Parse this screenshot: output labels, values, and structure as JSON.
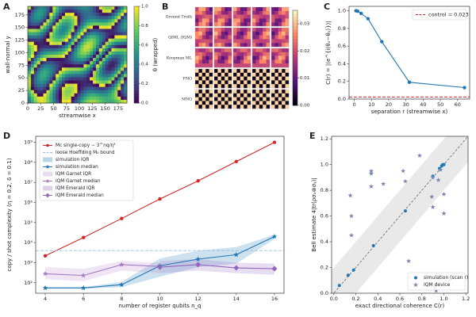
{
  "chart_data": [
    {
      "type": "heatmap",
      "panel": "A",
      "xlabel": "streamwise x",
      "ylabel": "wall-normal y",
      "xlim": [
        0,
        192
      ],
      "ylim": [
        0,
        192
      ],
      "xticks": [
        0,
        25,
        50,
        75,
        100,
        125,
        150,
        175
      ],
      "yticks": [
        0,
        25,
        50,
        75,
        100,
        125,
        150,
        175
      ],
      "colormap": "viridis",
      "clabel": "θ (wrapped)",
      "clim": [
        0,
        1
      ],
      "cticks": [
        {
          "value": 0,
          "label": "0.0"
        },
        0.2,
        0.4,
        0.6,
        0.8,
        {
          "value": 1,
          "label": "1.0"
        }
      ]
    },
    {
      "type": "image-grid",
      "panel": "B",
      "rows": [
        "Ground Truth",
        "QIML (IQM)",
        "Koopman ML",
        "FNO",
        "MNO"
      ],
      "colormap": "magma",
      "clim": [
        0,
        0.035
      ],
      "cticks": [
        {
          "value": 0,
          "label": "0.00"
        },
        {
          "value": 0.01,
          "label": "0.01"
        },
        {
          "value": 0.02,
          "label": "0.02"
        },
        {
          "value": 0.03,
          "label": "0.03"
        }
      ]
    },
    {
      "type": "line",
      "panel": "C",
      "xlabel": "separation r (streamwise x)",
      "ylabel": "C(r) = |⟨e^{i(θₓ−θᵧ)}⟩|",
      "x": [
        1,
        2,
        4,
        8,
        16,
        32,
        64
      ],
      "values": [
        1.0,
        0.995,
        0.97,
        0.91,
        0.65,
        0.19,
        0.13
      ],
      "color": "#1f77b4",
      "hline": {
        "name": "control = 0.023",
        "value": 0.023,
        "color": "#c62828"
      },
      "xlim": [
        -3,
        67
      ],
      "ylim": [
        0,
        1.05
      ],
      "xticks": [
        0,
        10,
        20,
        30,
        40,
        50,
        60
      ],
      "yticks": [
        {
          "value": 0,
          "label": "0.0"
        },
        0.2,
        0.4,
        0.6,
        0.8,
        {
          "value": 1,
          "label": "1.0"
        }
      ],
      "legend": "upper-right",
      "grid": false
    },
    {
      "type": "line",
      "panel": "D",
      "xlabel": "number of register qubits n_q",
      "ylabel": "copy / shot complexity (η = 0.2, δ = 0.1)",
      "ylog": true,
      "x": [
        4,
        6,
        8,
        10,
        12,
        14,
        16
      ],
      "xlim": [
        3.5,
        16.5
      ],
      "ylim": [
        30,
        2000000000
      ],
      "xticks": [
        4,
        6,
        8,
        10,
        12,
        14,
        16
      ],
      "yticks": [
        {
          "value": 100,
          "label": "10²"
        },
        {
          "value": 1000,
          "label": "10³"
        },
        {
          "value": 10000,
          "label": "10⁴"
        },
        {
          "value": 100000,
          "label": "10⁵"
        },
        {
          "value": 1000000,
          "label": "10⁶"
        },
        {
          "value": 10000000,
          "label": "10⁷"
        },
        {
          "value": 100000000,
          "label": "10⁸"
        },
        {
          "value": 1000000000,
          "label": "10⁹"
        }
      ],
      "legend": "upper-left",
      "grid": false,
      "series": [
        {
          "name": "Mc single-copy ∼ 3^nq/η²",
          "kind": "line",
          "marker": "o",
          "color": "#d62728",
          "values": [
            2200,
            18000,
            160000,
            1500000,
            12000000,
            110000000,
            1000000000
          ]
        },
        {
          "name": "loose Hoeffding M₀ bound",
          "kind": "hline",
          "color": "#8ec1e0",
          "value": 4000
        },
        {
          "name": "simulation IQR",
          "kind": "band",
          "color": "#1f77b4",
          "lower": [
            50,
            50,
            60,
            200,
            600,
            900,
            15000
          ],
          "upper": [
            60,
            60,
            110,
            1600,
            4000,
            6000,
            25000
          ]
        },
        {
          "name": "simulation median",
          "kind": "line",
          "marker": "*",
          "color": "#1f77b4",
          "values": [
            55,
            55,
            80,
            700,
            1500,
            2500,
            20000
          ]
        },
        {
          "name": "IQM Garnet IQR",
          "kind": "band",
          "color": "#b48ad0",
          "lower": [
            150,
            120,
            400,
            300,
            null,
            null,
            null
          ],
          "upper": [
            600,
            500,
            1200,
            1000,
            null,
            null,
            null
          ]
        },
        {
          "name": "IQM Garnet median",
          "kind": "line",
          "marker": "*",
          "color": "#a57cc4",
          "values": [
            280,
            230,
            800,
            650,
            null,
            null,
            null
          ]
        },
        {
          "name": "IQM Emerald IQR",
          "kind": "band",
          "color": "#9467bd",
          "lower": [
            null,
            null,
            null,
            300,
            400,
            300,
            250
          ],
          "upper": [
            null,
            null,
            null,
            1200,
            1500,
            1000,
            900
          ]
        },
        {
          "name": "IQM Emerald median",
          "kind": "line",
          "marker": "D",
          "color": "#9467bd",
          "values": [
            null,
            null,
            null,
            600,
            800,
            550,
            500
          ]
        }
      ]
    },
    {
      "type": "scatter",
      "panel": "E",
      "xlabel": "exact directional coherence C(r)",
      "ylabel": "Bell estimate 4|tr(ρσₓ⊗σᵧ)|",
      "xlim": [
        -0.02,
        1.22
      ],
      "ylim": [
        0,
        1.22
      ],
      "xticks": [
        {
          "value": 0,
          "label": "0.0"
        },
        0.2,
        0.4,
        0.6,
        0.8,
        {
          "value": 1,
          "label": "1.0"
        },
        1.2
      ],
      "yticks": [
        {
          "value": 0,
          "label": "0.0"
        },
        0.2,
        0.4,
        0.6,
        0.8,
        {
          "value": 1,
          "label": "1.0"
        },
        1.2
      ],
      "band_halfwidth": 0.2,
      "diagonal": true,
      "legend": "lower-right",
      "grid": false,
      "series": [
        {
          "name": "simulation (scan r)",
          "marker": "o",
          "color": "#1f77b4",
          "x": [
            0.05,
            0.13,
            0.18,
            0.36,
            0.65,
            0.9,
            0.96,
            0.98,
            0.99,
            1.0
          ],
          "values": [
            0.06,
            0.14,
            0.18,
            0.37,
            0.64,
            0.91,
            0.97,
            0.99,
            1.0,
            1.0
          ]
        },
        {
          "name": "IQM device",
          "marker": "*",
          "color": "#7a85b0",
          "x": [
            0.15,
            0.16,
            0.16,
            0.34,
            0.34,
            0.34,
            0.45,
            0.63,
            0.65,
            0.68,
            0.78,
            0.89,
            0.9,
            0.9,
            0.95,
            0.97,
            1.0,
            1.0,
            0.92,
            0.93
          ],
          "values": [
            0.76,
            0.6,
            0.45,
            0.95,
            0.93,
            0.83,
            0.85,
            0.95,
            0.87,
            0.25,
            1.07,
            0.75,
            0.67,
            0.9,
            0.88,
            0.96,
            0.77,
            0.62,
            0.05,
            0.02
          ]
        }
      ]
    }
  ]
}
